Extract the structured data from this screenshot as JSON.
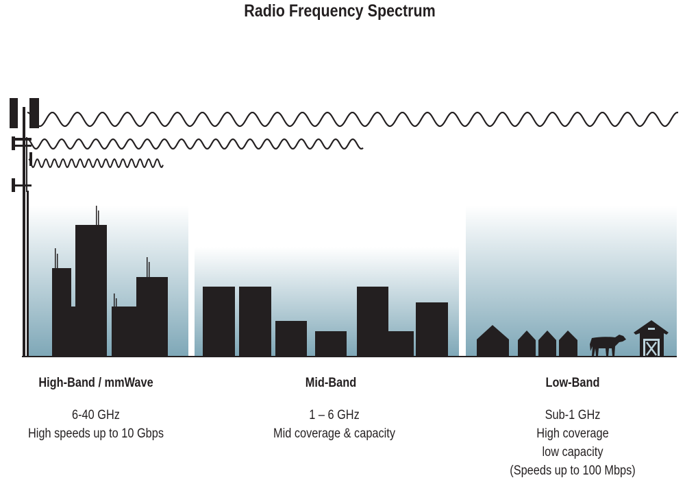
{
  "title": "Radio Frequency Spectrum",
  "colors": {
    "ink": "#231f20",
    "gradient_top": "#ffffff",
    "gradient_bottom": "#7ea7b7"
  },
  "bands": [
    {
      "name": "High-Band / mmWave",
      "lines": [
        "6-40 GHz",
        "High speeds up to 10 Gbps"
      ],
      "scene": "city skyscrapers",
      "wave": "short high-frequency wave"
    },
    {
      "name": "Mid-Band",
      "lines": [
        "1 – 6 GHz",
        "Mid coverage & capacity"
      ],
      "scene": "mid-rise buildings",
      "wave": "medium wave"
    },
    {
      "name": "Low-Band",
      "lines": [
        "Sub-1 GHz",
        "High coverage",
        "low capacity",
        "(Speeds up to 100 Mbps)"
      ],
      "scene": "rural houses, cow and barn",
      "wave": "long low-frequency wave"
    }
  ]
}
